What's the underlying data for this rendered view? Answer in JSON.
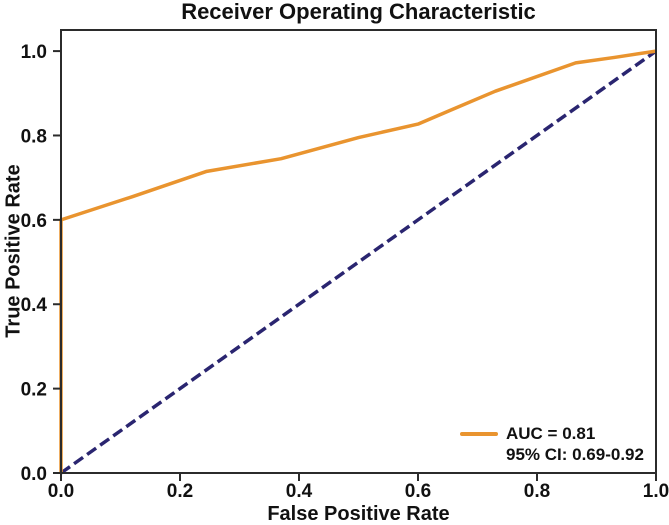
{
  "figure": {
    "title": "Receiver Operating Characteristic",
    "x_axis": {
      "label": "False Positive Rate",
      "tick_labels": [
        "0.0",
        "0.2",
        "0.4",
        "0.6",
        "0.8",
        "1.0"
      ]
    },
    "y_axis": {
      "label": "True Positive Rate",
      "tick_labels": [
        "0.0",
        "0.2",
        "0.4",
        "0.6",
        "0.8",
        "1.0"
      ]
    },
    "legend": {
      "auc_label": "AUC = 0.81",
      "ci_label": "95% CI: 0.69-0.92"
    }
  },
  "colors": {
    "roc_curve": "#E9942F",
    "diagonal": "#2A2570",
    "axis": "#2B2B2B",
    "text": "#111111",
    "background": "#FFFFFF"
  },
  "chart_data": {
    "type": "line",
    "title": "Receiver Operating Characteristic",
    "xlabel": "False Positive Rate",
    "ylabel": "True Positive Rate",
    "xlim": [
      0,
      1.0
    ],
    "ylim": [
      0,
      1.05
    ],
    "xticks": [
      0,
      0.2,
      0.4,
      0.6,
      0.8,
      1.0
    ],
    "yticks": [
      0,
      0.2,
      0.4,
      0.6,
      0.8,
      1.0
    ],
    "grid": false,
    "legend_position": "lower right",
    "legend_frame": false,
    "series": [
      {
        "name": "roc-curve",
        "label": "AUC = 0.81",
        "color": "#E9942F",
        "line_style": "solid",
        "x": [
          0,
          0,
          0.12,
          0.245,
          0.37,
          0.5,
          0.6,
          0.655,
          0.73,
          0.865,
          0.93,
          1.0
        ],
        "y": [
          0,
          0.6,
          0.655,
          0.715,
          0.745,
          0.795,
          0.827,
          0.86,
          0.905,
          0.972,
          0.985,
          1.0
        ]
      },
      {
        "name": "chance-diagonal",
        "label": "",
        "color": "#2A2570",
        "line_style": "dashed",
        "x": [
          0,
          1
        ],
        "y": [
          0,
          1
        ]
      }
    ],
    "annotations": {
      "auc": 0.81,
      "ci_95_low": 0.69,
      "ci_95_high": 0.92
    }
  }
}
